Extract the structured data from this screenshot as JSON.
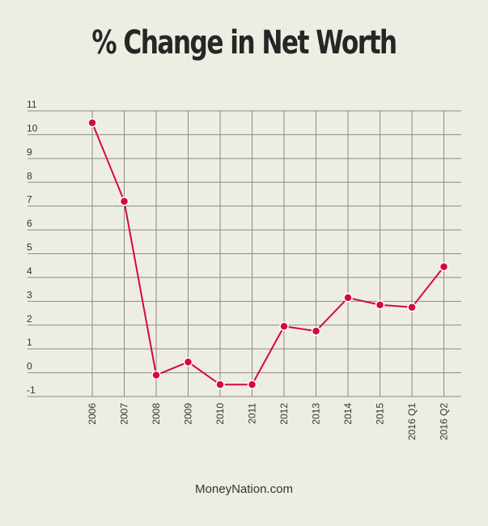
{
  "chart_data": {
    "type": "line",
    "title": "% Change in Net Worth",
    "categories": [
      "2006",
      "2007",
      "2008",
      "2009",
      "2010",
      "2011",
      "2012",
      "2013",
      "2014",
      "2015",
      "2016 Q1",
      "2016 Q2"
    ],
    "series": [
      {
        "values": [
          10.5,
          7.2,
          -0.1,
          0.45,
          -0.5,
          -0.5,
          1.95,
          1.75,
          3.15,
          2.85,
          2.75,
          4.45
        ],
        "color": "#d6093b"
      }
    ],
    "y_ticks": [
      11,
      10,
      9,
      8,
      7,
      6,
      5,
      4,
      3,
      2,
      1,
      0,
      -1
    ],
    "ylim": [
      -1,
      11
    ],
    "grid": true,
    "xlabel": "",
    "ylabel": ""
  },
  "footer": {
    "source": "MoneyNation.com"
  }
}
